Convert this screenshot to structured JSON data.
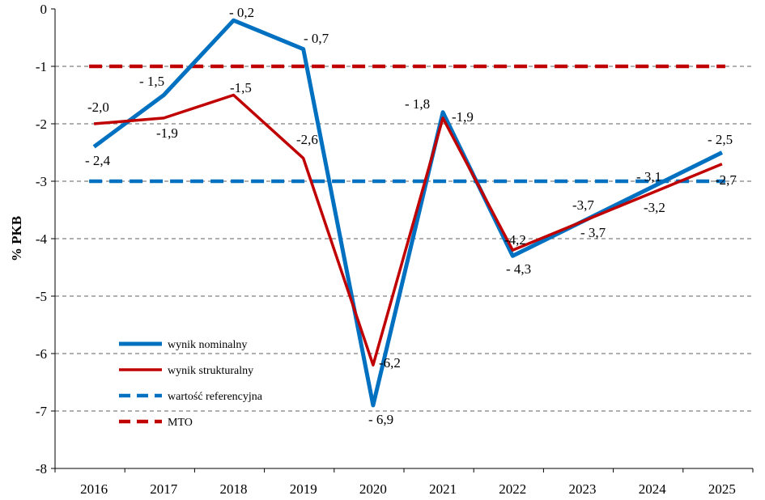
{
  "chart_data": {
    "type": "line",
    "title": "",
    "xlabel": "",
    "ylabel": "% PKB",
    "ylim": [
      -8,
      0
    ],
    "yticks": [
      "0",
      "-1",
      "-2",
      "-3",
      "-4",
      "-5",
      "-6",
      "-7",
      "-8"
    ],
    "categories": [
      "2016",
      "2017",
      "2018",
      "2019",
      "2020",
      "2021",
      "2022",
      "2023",
      "2024",
      "2025"
    ],
    "grid": true,
    "legend_position": "bottom-left",
    "series": [
      {
        "name": "wynik nominalny",
        "color": "#0070C0",
        "style": "solid",
        "values": [
          -2.4,
          -1.5,
          -0.2,
          -0.7,
          -6.9,
          -1.8,
          -4.3,
          -3.7,
          -3.1,
          -2.5
        ],
        "labels": [
          "- 2,4",
          "- 1,5",
          "- 0,2",
          "- 0,7",
          "- 6,9",
          "- 1,8",
          "- 4,3",
          "- 3,7",
          "- 3,1",
          "- 2,5"
        ]
      },
      {
        "name": "wynik strukturalny",
        "color": "#C00000",
        "style": "solid",
        "values": [
          -2.0,
          -1.9,
          -1.5,
          -2.6,
          -6.2,
          -1.9,
          -4.2,
          -3.7,
          -3.2,
          -2.7
        ],
        "labels": [
          "-2,0",
          "-1,9",
          "-1,5",
          "-2,6",
          "-6,2",
          "-1,9",
          "-4,2",
          "-3,7",
          "-3,2",
          "-2,7"
        ]
      },
      {
        "name": "wartość referencyjna",
        "color": "#0070C0",
        "style": "dashed",
        "values": [
          -3,
          -3,
          -3,
          -3,
          -3,
          -3,
          -3,
          -3,
          -3,
          -3
        ]
      },
      {
        "name": "MTO",
        "color": "#C00000",
        "style": "dashed",
        "values": [
          -1,
          -1,
          -1,
          -1,
          -1,
          -1,
          -1,
          -1,
          -1,
          -1
        ]
      }
    ]
  }
}
